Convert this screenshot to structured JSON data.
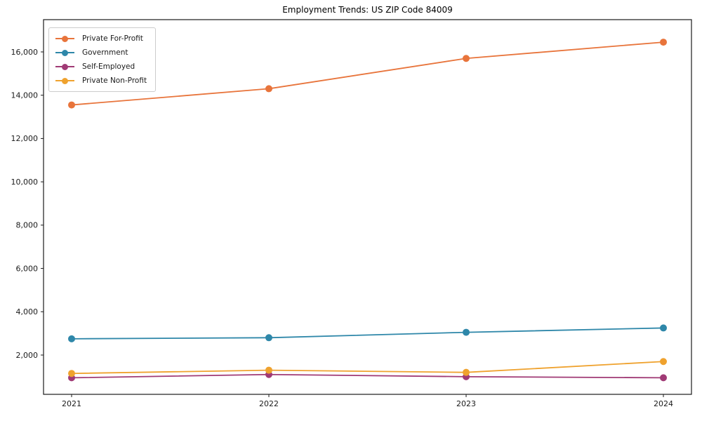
{
  "title": "Employment Trends: US ZIP Code 84009",
  "chart_data": {
    "type": "line",
    "x": [
      "2021",
      "2022",
      "2023",
      "2024"
    ],
    "series": [
      {
        "name": "Private For-Profit",
        "color": "#e8743b",
        "values": [
          13550,
          14300,
          15700,
          16450
        ]
      },
      {
        "name": "Government",
        "color": "#2e87a9",
        "values": [
          2750,
          2800,
          3050,
          3250
        ]
      },
      {
        "name": "Self-Employed",
        "color": "#a03a75",
        "values": [
          950,
          1100,
          1000,
          950
        ]
      },
      {
        "name": "Private Non-Profit",
        "color": "#efa22e",
        "values": [
          1150,
          1300,
          1200,
          1700
        ]
      }
    ],
    "title": "Employment Trends: US ZIP Code 84009",
    "xlabel": "",
    "ylabel": "",
    "yticks": [
      2000,
      4000,
      6000,
      8000,
      10000,
      12000,
      14000,
      16000
    ],
    "ylim": [
      185,
      17490
    ],
    "grid": false,
    "marker": "circle",
    "legend_position": "upper-left",
    "axis_color": "#1a1a1a"
  }
}
